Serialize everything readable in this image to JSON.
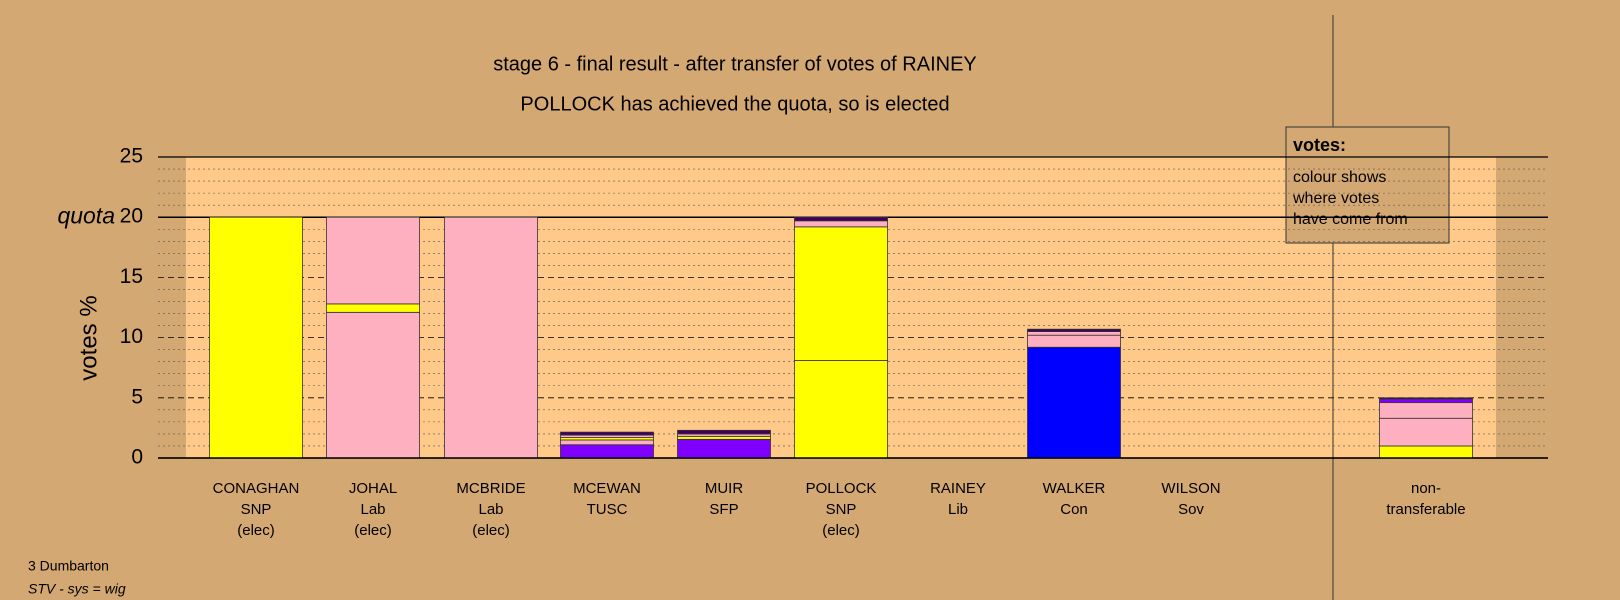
{
  "chart_data": {
    "type": "bar",
    "stacked": true,
    "title": "stage 6 - final result - after transfer of votes of RAINEY",
    "subtitle": "POLLOCK has achieved the quota, so is elected",
    "y_label": "votes %",
    "quota": 20,
    "quota_label": "quota",
    "categories": [
      [
        "CONAGHAN",
        "SNP",
        "(elec)"
      ],
      [
        "JOHAL",
        "Lab",
        "(elec)"
      ],
      [
        "MCBRIDE",
        "Lab",
        "(elec)"
      ],
      [
        "MCEWAN",
        "TUSC"
      ],
      [
        "MUIR",
        "SFP"
      ],
      [
        "POLLOCK",
        "SNP",
        "(elec)"
      ],
      [
        "RAINEY",
        "Lib"
      ],
      [
        "WALKER",
        "Con"
      ],
      [
        "WILSON",
        "Sov"
      ],
      [
        "non-",
        "transferable"
      ]
    ],
    "series": [
      {
        "color": "#ffff00",
        "values": [
          20,
          0,
          0,
          0,
          0,
          8.1,
          0,
          0,
          0,
          1.0
        ]
      },
      {
        "color": "#ffb0c0",
        "values": [
          0,
          12.1,
          20,
          0,
          0,
          0,
          0,
          0,
          0,
          0
        ]
      },
      {
        "color": "#8000ff",
        "values": [
          0,
          0,
          0,
          1.1,
          1.55,
          0,
          0,
          0,
          0,
          0
        ]
      },
      {
        "color": "#0000ff",
        "values": [
          0,
          0,
          0,
          0,
          0,
          0,
          0,
          9.2,
          0,
          0
        ]
      },
      {
        "color": "#ffb0c0",
        "values": [
          0,
          0,
          0,
          0.4,
          0,
          0,
          0,
          1.0,
          0,
          2.3
        ]
      },
      {
        "color": "#ffff00",
        "values": [
          0,
          0.7,
          0,
          0.2,
          0.25,
          11.1,
          0,
          0,
          0,
          0
        ]
      },
      {
        "color": "#ffb0c0",
        "values": [
          0,
          7.2,
          0,
          0.2,
          0.2,
          0.5,
          0,
          0.3,
          0,
          1.3
        ]
      },
      {
        "color": "#8000ff",
        "values": [
          0,
          0,
          0,
          0,
          0,
          0,
          0,
          0,
          0,
          0.3
        ]
      },
      {
        "color": "#400060",
        "values": [
          0,
          0,
          0,
          0.25,
          0.3,
          0.3,
          0,
          0.2,
          0,
          0.1
        ]
      }
    ],
    "ylim": [
      0,
      25
    ],
    "yticks": [
      0,
      5,
      10,
      15,
      20,
      25
    ],
    "minor_yticks": [
      1,
      2,
      3,
      4,
      6,
      7,
      8,
      9,
      11,
      12,
      13,
      14,
      16,
      17,
      18,
      19,
      21,
      22,
      23,
      24
    ],
    "grid": true,
    "legend": {
      "title": "votes:",
      "lines": [
        "colour shows",
        "where votes",
        "have come from"
      ]
    },
    "footnote": [
      "3 Dumbarton",
      "STV - sys = wig"
    ]
  }
}
